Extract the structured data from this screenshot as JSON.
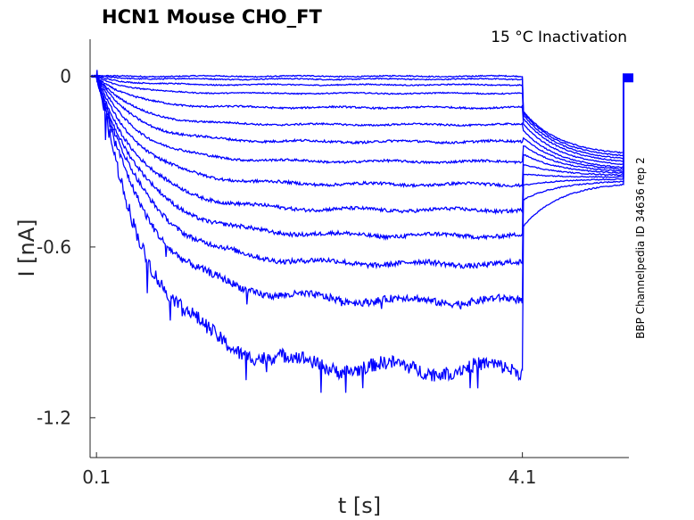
{
  "chart_data": {
    "type": "line",
    "title": "HCN1  Mouse  CHO_FT",
    "subtitle": "15 °C  Inactivation",
    "side_note": "BBP Channelpedia ID 34636 rep 2",
    "xlabel": "t [s]",
    "ylabel": "I [nA]",
    "xticks": [
      {
        "value": 0.1,
        "label": "0.1"
      },
      {
        "value": 4.1,
        "label": "4.1"
      }
    ],
    "yticks": [
      {
        "value": 0,
        "label": "0"
      },
      {
        "value": -0.6,
        "label": "-0.6"
      },
      {
        "value": -1.2,
        "label": "-1.2"
      }
    ],
    "xlim": [
      0.04,
      5.1
    ],
    "ylim": [
      -1.34,
      0.13
    ],
    "grid": false,
    "series_color": "#0000ff",
    "protocol": {
      "t_step_on": 0.1,
      "t_step_off": 4.1,
      "t_end": 5.05
    },
    "series": [
      {
        "steady": 0.0,
        "tail": -0.28,
        "noise": 0.002
      },
      {
        "steady": -0.01,
        "tail": -0.29,
        "noise": 0.002
      },
      {
        "steady": -0.03,
        "tail": -0.3,
        "noise": 0.002
      },
      {
        "steady": -0.06,
        "tail": -0.31,
        "noise": 0.002
      },
      {
        "steady": -0.11,
        "tail": -0.32,
        "noise": 0.003
      },
      {
        "steady": -0.17,
        "tail": -0.33,
        "noise": 0.003
      },
      {
        "steady": -0.23,
        "tail": -0.335,
        "noise": 0.004
      },
      {
        "steady": -0.3,
        "tail": -0.34,
        "noise": 0.004
      },
      {
        "steady": -0.38,
        "tail": -0.345,
        "noise": 0.005
      },
      {
        "steady": -0.47,
        "tail": -0.35,
        "noise": 0.006
      },
      {
        "steady": -0.56,
        "tail": -0.355,
        "noise": 0.007
      },
      {
        "steady": -0.66,
        "tail": -0.36,
        "noise": 0.009
      },
      {
        "steady": -0.79,
        "tail": -0.365,
        "noise": 0.013
      },
      {
        "steady": -1.03,
        "tail": -0.37,
        "noise": 0.025
      }
    ]
  }
}
